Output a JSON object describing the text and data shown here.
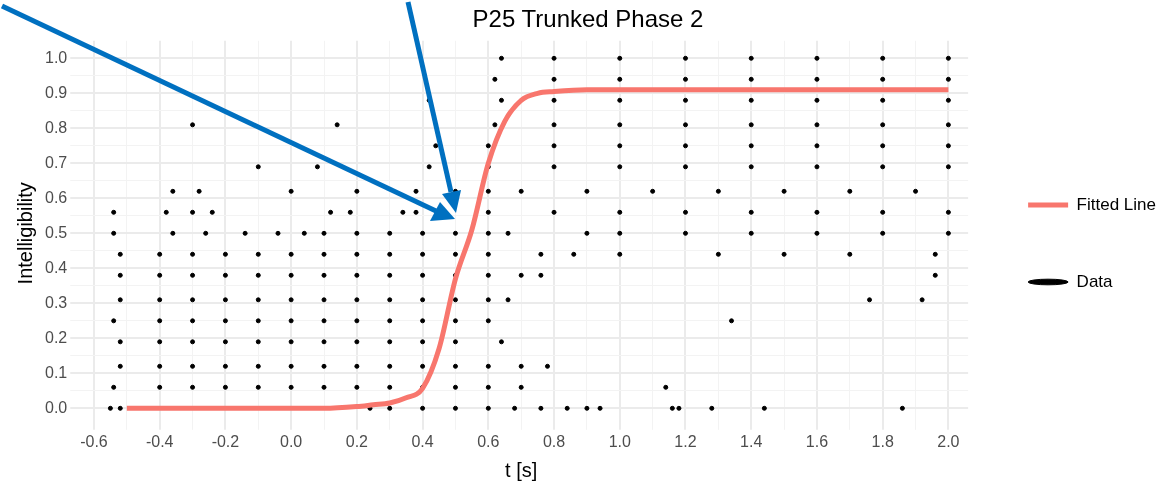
{
  "chart_data": {
    "type": "scatter",
    "title": "P25 Trunked Phase 2",
    "xlabel": "t [s]",
    "ylabel": "Intelligibility",
    "xlim": [
      -0.66,
      2.06
    ],
    "ylim": [
      -0.05,
      1.05
    ],
    "xticks": [
      {
        "value": -0.6,
        "label": "-0.6"
      },
      {
        "value": -0.5,
        "label": null
      },
      {
        "value": -0.4,
        "label": "-0.4"
      },
      {
        "value": -0.3,
        "label": null
      },
      {
        "value": -0.2,
        "label": "-0.2"
      },
      {
        "value": -0.1,
        "label": null
      },
      {
        "value": 0,
        "label": "0.0"
      },
      {
        "value": 0.1,
        "label": null
      },
      {
        "value": 0.2,
        "label": "0.2"
      },
      {
        "value": 0.3,
        "label": null
      },
      {
        "value": 0.4,
        "label": "0.4"
      },
      {
        "value": 0.5,
        "label": null
      },
      {
        "value": 0.6,
        "label": "0.6"
      },
      {
        "value": 0.7,
        "label": null
      },
      {
        "value": 0.8,
        "label": "0.8"
      },
      {
        "value": 0.9,
        "label": null
      },
      {
        "value": 1,
        "label": "1.0"
      },
      {
        "value": 1.1,
        "label": null
      },
      {
        "value": 1.2,
        "label": "1.2"
      },
      {
        "value": 1.3,
        "label": null
      },
      {
        "value": 1.4,
        "label": "1.4"
      },
      {
        "value": 1.5,
        "label": null
      },
      {
        "value": 1.6,
        "label": "1.6"
      },
      {
        "value": 1.7,
        "label": null
      },
      {
        "value": 1.8,
        "label": "1.8"
      },
      {
        "value": 1.9,
        "label": null
      },
      {
        "value": 2,
        "label": "2.0"
      }
    ],
    "yticks": [
      {
        "value": 0,
        "label": "0.0"
      },
      {
        "value": 0.05,
        "label": null
      },
      {
        "value": 0.1,
        "label": "0.1"
      },
      {
        "value": 0.15,
        "label": null
      },
      {
        "value": 0.2,
        "label": "0.2"
      },
      {
        "value": 0.25,
        "label": null
      },
      {
        "value": 0.3,
        "label": "0.3"
      },
      {
        "value": 0.35,
        "label": null
      },
      {
        "value": 0.4,
        "label": "0.4"
      },
      {
        "value": 0.45,
        "label": null
      },
      {
        "value": 0.5,
        "label": "0.5"
      },
      {
        "value": 0.55,
        "label": null
      },
      {
        "value": 0.6,
        "label": "0.6"
      },
      {
        "value": 0.65,
        "label": null
      },
      {
        "value": 0.7,
        "label": "0.7"
      },
      {
        "value": 0.75,
        "label": null
      },
      {
        "value": 0.8,
        "label": "0.8"
      },
      {
        "value": 0.85,
        "label": null
      },
      {
        "value": 0.9,
        "label": "0.9"
      },
      {
        "value": 0.95,
        "label": null
      },
      {
        "value": 1,
        "label": "1.0"
      }
    ],
    "grid": true,
    "legend": "right",
    "marker": "circle",
    "series": [
      {
        "name": "Fitted Line",
        "type": "line",
        "color": "#f8766d",
        "marker": "none",
        "x": [
          -0.5,
          -0.2,
          0,
          0.1,
          0.2,
          0.25,
          0.3,
          0.35,
          0.4,
          0.45,
          0.5,
          0.55,
          0.6,
          0.65,
          0.7,
          0.75,
          0.8,
          0.9,
          1.0,
          1.5,
          2.0
        ],
        "values": [
          0,
          0,
          0,
          0,
          0.005,
          0.01,
          0.015,
          0.03,
          0.057,
          0.17,
          0.37,
          0.51,
          0.7,
          0.82,
          0.88,
          0.9,
          0.905,
          0.91,
          0.91,
          0.91,
          0.91
        ]
      },
      {
        "name": "Data",
        "color": "#000000",
        "x": [
          0.64,
          0.8,
          1.0,
          1.2,
          1.4,
          1.6,
          1.8,
          2.0,
          0.62,
          0.8,
          1.0,
          1.2,
          1.4,
          1.6,
          1.8,
          2.0,
          0.42,
          0.64,
          0.8,
          1.0,
          1.2,
          1.4,
          1.6,
          1.8,
          2.0,
          -0.3,
          0.14,
          0.62,
          0.8,
          1.0,
          1.2,
          1.4,
          1.6,
          1.8,
          2.0,
          0.44,
          0.6,
          0.8,
          1.0,
          1.2,
          1.4,
          1.6,
          1.8,
          2.0,
          -0.1,
          0.08,
          0.42,
          0.6,
          0.8,
          1.0,
          1.2,
          1.4,
          1.6,
          1.8,
          2.0,
          -0.36,
          -0.28,
          0.0,
          0.2,
          0.38,
          0.5,
          0.6,
          0.7,
          0.9,
          1.1,
          1.3,
          1.5,
          1.7,
          1.9,
          -0.54,
          -0.38,
          -0.3,
          -0.24,
          0.12,
          0.18,
          0.34,
          0.38,
          0.6,
          0.8,
          1.0,
          1.2,
          1.4,
          1.6,
          1.8,
          2.0,
          -0.54,
          -0.36,
          -0.26,
          -0.14,
          -0.04,
          0.04,
          0.1,
          0.2,
          0.3,
          0.4,
          0.5,
          0.6,
          0.66,
          0.9,
          1.0,
          1.2,
          1.4,
          1.6,
          1.8,
          2.0,
          -0.52,
          -0.4,
          -0.3,
          -0.2,
          -0.1,
          0.0,
          0.1,
          0.2,
          0.3,
          0.4,
          0.5,
          0.6,
          0.76,
          0.86,
          1.0,
          1.3,
          1.5,
          1.7,
          1.96,
          -0.52,
          -0.4,
          -0.3,
          -0.2,
          -0.1,
          0.0,
          0.1,
          0.2,
          0.3,
          0.4,
          0.5,
          0.6,
          0.7,
          0.76,
          1.96,
          -0.52,
          -0.4,
          -0.3,
          -0.2,
          -0.1,
          0.0,
          0.1,
          0.2,
          0.3,
          0.4,
          0.5,
          0.6,
          0.66,
          1.76,
          1.92,
          -0.54,
          -0.4,
          -0.3,
          -0.2,
          -0.1,
          0.0,
          0.1,
          0.2,
          0.3,
          0.4,
          0.5,
          0.6,
          1.34,
          -0.52,
          -0.4,
          -0.3,
          -0.2,
          -0.1,
          0.0,
          0.1,
          0.2,
          0.3,
          0.4,
          0.5,
          0.64,
          -0.52,
          -0.4,
          -0.3,
          -0.2,
          -0.1,
          0.0,
          0.1,
          0.2,
          0.3,
          0.4,
          0.5,
          0.6,
          0.7,
          0.78,
          -0.54,
          -0.4,
          -0.3,
          -0.2,
          -0.1,
          0.0,
          0.1,
          0.2,
          0.3,
          0.4,
          0.5,
          0.6,
          0.7,
          1.14,
          -0.55,
          -0.52,
          0.24,
          0.3,
          0.4,
          0.5,
          0.6,
          0.68,
          0.76,
          0.84,
          0.9,
          0.94,
          1.16,
          1.18,
          1.28,
          1.44,
          1.86
        ],
        "values": [
          1,
          1,
          1,
          1,
          1,
          1,
          1,
          1,
          0.94,
          0.94,
          0.94,
          0.94,
          0.94,
          0.94,
          0.94,
          0.94,
          0.88,
          0.88,
          0.88,
          0.88,
          0.88,
          0.88,
          0.88,
          0.88,
          0.88,
          0.81,
          0.81,
          0.81,
          0.81,
          0.81,
          0.81,
          0.81,
          0.81,
          0.81,
          0.81,
          0.75,
          0.75,
          0.75,
          0.75,
          0.75,
          0.75,
          0.75,
          0.75,
          0.75,
          0.69,
          0.69,
          0.69,
          0.69,
          0.69,
          0.69,
          0.69,
          0.69,
          0.69,
          0.69,
          0.69,
          0.62,
          0.62,
          0.62,
          0.62,
          0.62,
          0.62,
          0.62,
          0.62,
          0.62,
          0.62,
          0.62,
          0.62,
          0.62,
          0.62,
          0.56,
          0.56,
          0.56,
          0.56,
          0.56,
          0.56,
          0.56,
          0.56,
          0.56,
          0.56,
          0.56,
          0.56,
          0.56,
          0.56,
          0.56,
          0.56,
          0.5,
          0.5,
          0.5,
          0.5,
          0.5,
          0.5,
          0.5,
          0.5,
          0.5,
          0.5,
          0.5,
          0.5,
          0.5,
          0.5,
          0.5,
          0.5,
          0.5,
          0.5,
          0.5,
          0.5,
          0.44,
          0.44,
          0.44,
          0.44,
          0.44,
          0.44,
          0.44,
          0.44,
          0.44,
          0.44,
          0.44,
          0.44,
          0.44,
          0.44,
          0.44,
          0.44,
          0.44,
          0.44,
          0.44,
          0.38,
          0.38,
          0.38,
          0.38,
          0.38,
          0.38,
          0.38,
          0.38,
          0.38,
          0.38,
          0.38,
          0.38,
          0.38,
          0.38,
          0.38,
          0.31,
          0.31,
          0.31,
          0.31,
          0.31,
          0.31,
          0.31,
          0.31,
          0.31,
          0.31,
          0.31,
          0.31,
          0.31,
          0.31,
          0.31,
          0.25,
          0.25,
          0.25,
          0.25,
          0.25,
          0.25,
          0.25,
          0.25,
          0.25,
          0.25,
          0.25,
          0.25,
          0.25,
          0.19,
          0.19,
          0.19,
          0.19,
          0.19,
          0.19,
          0.19,
          0.19,
          0.19,
          0.19,
          0.19,
          0.19,
          0.12,
          0.12,
          0.12,
          0.12,
          0.12,
          0.12,
          0.12,
          0.12,
          0.12,
          0.12,
          0.12,
          0.12,
          0.12,
          0.12,
          0.06,
          0.06,
          0.06,
          0.06,
          0.06,
          0.06,
          0.06,
          0.06,
          0.06,
          0.06,
          0.06,
          0.06,
          0.06,
          0.06,
          0,
          0,
          0,
          0,
          0,
          0,
          0,
          0,
          0,
          0,
          0,
          0,
          0,
          0,
          0,
          0,
          0
        ]
      }
    ]
  }
}
